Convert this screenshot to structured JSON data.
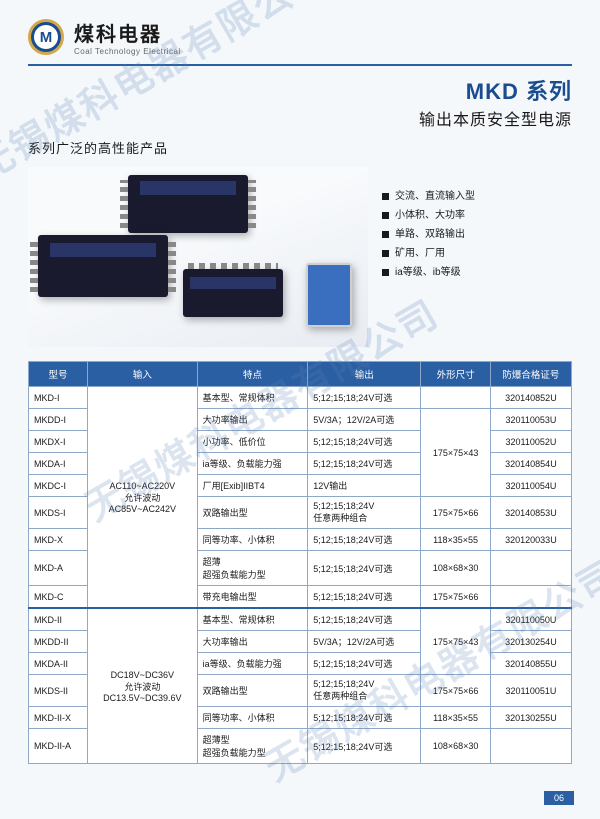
{
  "brand": {
    "cn": "煤科电器",
    "en": "Coal Technology Electrical",
    "logo_letter": "M"
  },
  "series": {
    "title": "MKD 系列",
    "subtitle": "输出本质安全型电源"
  },
  "tagline": "系列广泛的高性能产品",
  "watermark": "无锡煤科电器有限公司",
  "features": [
    "交流、直流输入型",
    "小体积、大功率",
    "单路、双路输出",
    "矿用、厂用",
    "ia等级、ib等级"
  ],
  "table": {
    "headers": [
      "型号",
      "输入",
      "特点",
      "输出",
      "外形尺寸",
      "防爆合格证号"
    ],
    "group1_input": "AC110~AC220V\n允许波动\nAC85V~AC242V",
    "group2_input": "DC18V~DC36V\n允许波动\nDC13.5V~DC39.6V",
    "rows1": [
      {
        "model": "MKD-I",
        "feature": "基本型、常规体积",
        "output": "5;12;15;18;24V可选",
        "size": "",
        "cert": "320140852U",
        "size_rowspan": 0
      },
      {
        "model": "MKDD-I",
        "feature": "大功率输出",
        "output": "5V/3A；12V/2A可选",
        "size": "175×75×43",
        "cert": "320110053U",
        "size_rowspan": 4
      },
      {
        "model": "MKDX-I",
        "feature": "小功率、低价位",
        "output": "5;12;15;18;24V可选",
        "size": "",
        "cert": "320110052U"
      },
      {
        "model": "MKDA-I",
        "feature": "ia等级、负载能力强",
        "output": "5;12;15;18;24V可选",
        "size": "",
        "cert": "320140854U"
      },
      {
        "model": "MKDC-I",
        "feature": "厂用[Exib]IIBT4",
        "output": "12V输出",
        "size": "",
        "cert": "320110054U"
      },
      {
        "model": "MKDS-I",
        "feature": "双路输出型",
        "output": "5;12;15;18;24V\n任意两种组合",
        "size": "175×75×66",
        "cert": "320140853U"
      },
      {
        "model": "MKD-X",
        "feature": "同等功率、小体积",
        "output": "5;12;15;18;24V可选",
        "size": "118×35×55",
        "cert": "320120033U"
      },
      {
        "model": "MKD-A",
        "feature": "超薄\n超强负载能力型",
        "output": "5;12;15;18;24V可选",
        "size": "108×68×30",
        "cert": ""
      },
      {
        "model": "MKD-C",
        "feature": "带充电输出型",
        "output": "5;12;15;18;24V可选",
        "size": "175×75×66",
        "cert": ""
      }
    ],
    "rows2": [
      {
        "model": "MKD-II",
        "feature": "基本型、常规体积",
        "output": "5;12;15;18;24V可选",
        "size": "175×75×43",
        "cert": "320110050U",
        "size_rowspan": 3
      },
      {
        "model": "MKDD-II",
        "feature": "大功率输出",
        "output": "5V/3A；12V/2A可选",
        "size": "",
        "cert": "320130254U"
      },
      {
        "model": "MKDA-II",
        "feature": "ia等级、负载能力强",
        "output": "5;12;15;18;24V可选",
        "size": "",
        "cert": "320140855U"
      },
      {
        "model": "MKDS-II",
        "feature": "双路输出型",
        "output": "5;12;15;18;24V\n任意两种组合",
        "size": "175×75×66",
        "cert": "320110051U"
      },
      {
        "model": "MKD-II-X",
        "feature": "同等功率、小体积",
        "output": "5;12;15;18;24V可选",
        "size": "118×35×55",
        "cert": "320130255U"
      },
      {
        "model": "MKD-II-A",
        "feature": "超薄型\n超强负载能力型",
        "output": "5;12;15;18;24V可选",
        "size": "108×68×30",
        "cert": ""
      }
    ]
  },
  "page_num": "06"
}
